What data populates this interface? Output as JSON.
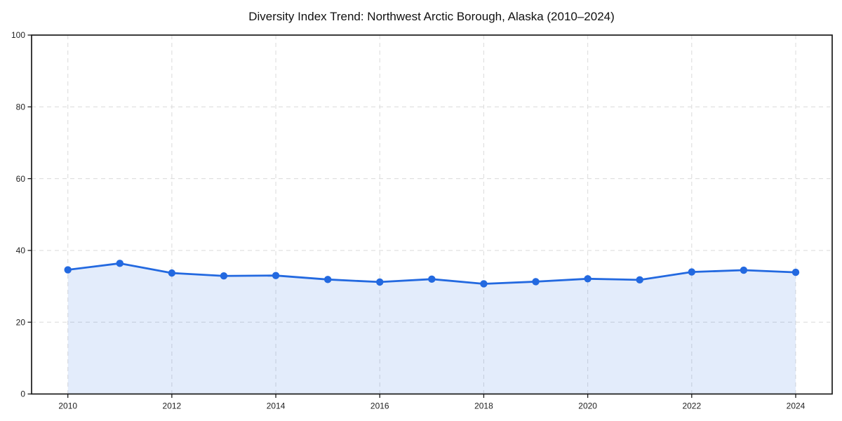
{
  "chart_data": {
    "type": "area",
    "title": "Diversity Index Trend: Northwest Arctic Borough, Alaska (2010–2024)",
    "x": [
      2010,
      2011,
      2012,
      2013,
      2014,
      2015,
      2016,
      2017,
      2018,
      2019,
      2020,
      2021,
      2022,
      2023,
      2024
    ],
    "values": [
      34.6,
      36.4,
      33.7,
      32.9,
      33.0,
      31.9,
      31.2,
      32.0,
      30.7,
      31.3,
      32.1,
      31.8,
      34.0,
      34.5,
      33.9
    ],
    "series_name": "Diversity Index",
    "xlabel": "",
    "ylabel": "",
    "ylim": [
      0,
      100
    ],
    "xticks": [
      2010,
      2012,
      2014,
      2016,
      2018,
      2020,
      2022,
      2024
    ],
    "yticks": [
      0,
      20,
      40,
      60,
      80,
      100
    ],
    "grid": true,
    "grid_style": "dashed",
    "legend": false,
    "marker": "circle",
    "colors": {
      "line": "#2369e0",
      "fill": "rgba(35, 105, 224, 0.13)",
      "grid": "#dedede",
      "spine": "#1a1a1a",
      "tick_text": "#1f1f1f",
      "title_text": "#111111",
      "background": "#ffffff"
    }
  }
}
